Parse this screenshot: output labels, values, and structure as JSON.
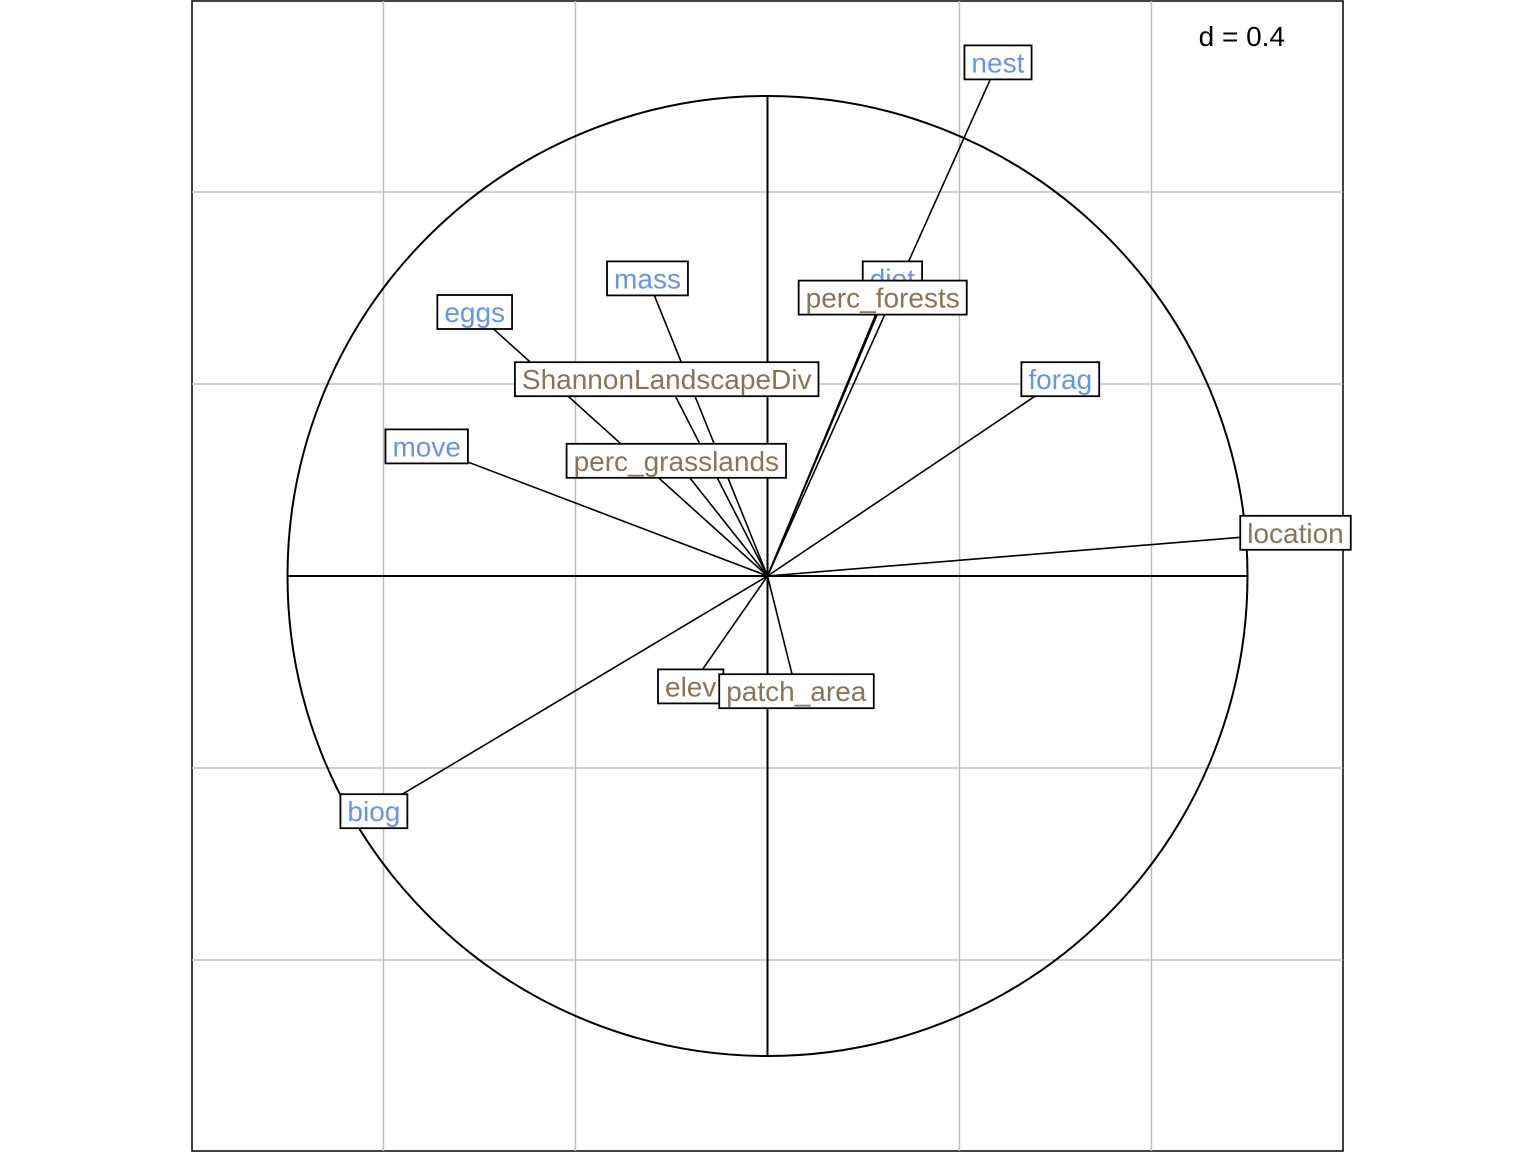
{
  "chart_data": {
    "type": "correlation-circle",
    "scale_label": "d = 0.4",
    "grid_step": 0.4,
    "circle_radius": 1.0,
    "xlim": [
      -1.2,
      1.2
    ],
    "ylim": [
      -1.2,
      1.2
    ],
    "grid": true,
    "colors": {
      "trait": "#6495ED",
      "landscape": "#8B7355",
      "arrow": "#000000",
      "grid": "#BEBEBE",
      "axis": "#000000"
    },
    "variables": [
      {
        "label": "nest",
        "group": "trait",
        "x": 0.48,
        "y": 1.07
      },
      {
        "label": "diet",
        "group": "trait",
        "x": 0.26,
        "y": 0.62
      },
      {
        "label": "mass",
        "group": "trait",
        "x": -0.25,
        "y": 0.62
      },
      {
        "label": "eggs",
        "group": "trait",
        "x": -0.61,
        "y": 0.55
      },
      {
        "label": "forag",
        "group": "trait",
        "x": 0.61,
        "y": 0.41
      },
      {
        "label": "move",
        "group": "trait",
        "x": -0.71,
        "y": 0.27
      },
      {
        "label": "biog",
        "group": "trait",
        "x": -0.82,
        "y": -0.49
      },
      {
        "label": "perc_forests",
        "group": "landscape",
        "x": 0.24,
        "y": 0.58
      },
      {
        "label": "ShannonLandscapeDiv",
        "group": "landscape",
        "x": -0.21,
        "y": 0.41
      },
      {
        "label": "perc_grasslands",
        "group": "landscape",
        "x": -0.19,
        "y": 0.24
      },
      {
        "label": "location",
        "group": "landscape",
        "x": 1.1,
        "y": 0.09
      },
      {
        "label": "elev",
        "group": "landscape",
        "x": -0.16,
        "y": -0.23
      },
      {
        "label": "patch_area",
        "group": "landscape",
        "x": 0.06,
        "y": -0.24
      }
    ]
  }
}
